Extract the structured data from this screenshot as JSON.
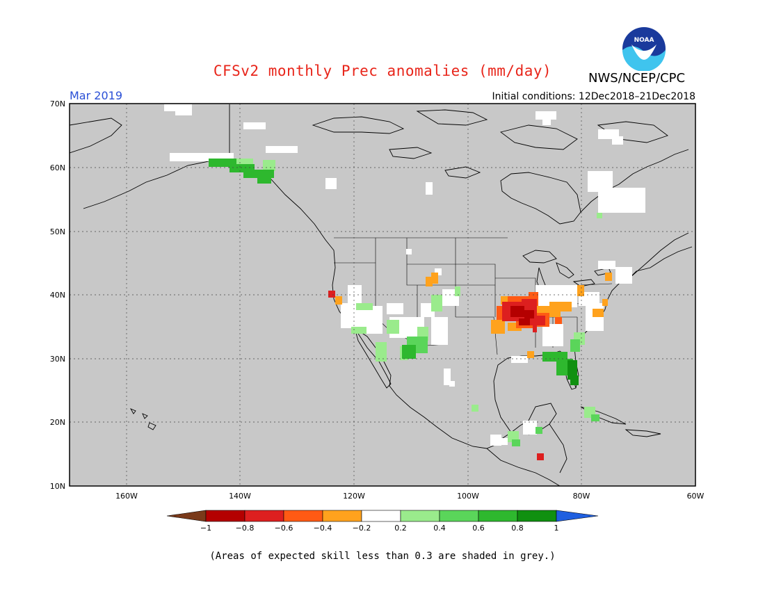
{
  "header": {
    "title": "CFSv2 monthly Prec anomalies (mm/day)",
    "organization": "NWS/NCEP/CPC",
    "month": "Mar 2019",
    "initial_conditions": "Initial conditions: 12Dec2018–21Dec2018",
    "logo_text": "NOAA"
  },
  "map": {
    "lat_labels": [
      "70N",
      "60N",
      "50N",
      "40N",
      "30N",
      "20N",
      "10N"
    ],
    "lon_labels": [
      "160W",
      "140W",
      "120W",
      "100W",
      "80W",
      "60W"
    ],
    "background_color": "#c8c8c8"
  },
  "colorbar": {
    "labels": [
      "−1",
      "−0.8",
      "−0.6",
      "−0.4",
      "−0.2",
      "0.2",
      "0.4",
      "0.6",
      "0.8",
      "1"
    ],
    "colors": [
      "#7a3a1a",
      "#b40000",
      "#dd1f1f",
      "#ff5a14",
      "#ffa21d",
      "#ffffff",
      "#9aeb8c",
      "#5ad55a",
      "#2eb82e",
      "#109010",
      "#1f5fe0"
    ]
  },
  "footnote": "(Areas of expected skill less than 0.3 are shaded in grey.)"
}
